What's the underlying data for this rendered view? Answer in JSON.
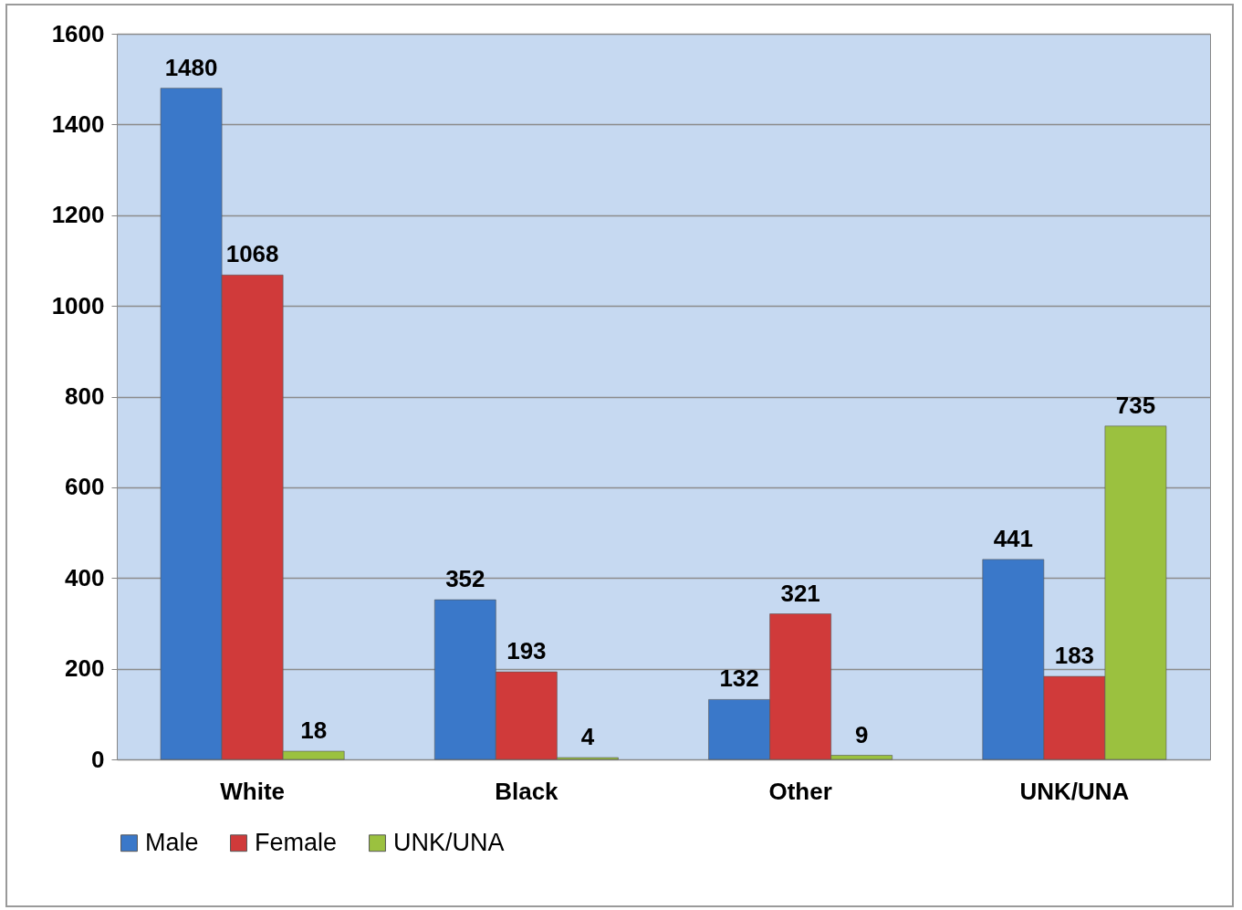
{
  "chart_data": {
    "type": "bar",
    "categories": [
      "White",
      "Black",
      "Other",
      "UNK/UNA"
    ],
    "series": [
      {
        "name": "Male",
        "color": "#3a78c9",
        "values": [
          1480,
          352,
          132,
          441
        ]
      },
      {
        "name": "Female",
        "color": "#d03a3a",
        "values": [
          1068,
          193,
          321,
          183
        ]
      },
      {
        "name": "UNK/UNA",
        "color": "#9bc13f",
        "values": [
          18,
          4,
          9,
          735
        ]
      }
    ],
    "ylim": [
      0,
      1600
    ],
    "yticks": [
      0,
      200,
      400,
      600,
      800,
      1000,
      1200,
      1400,
      1600
    ],
    "grid": "y",
    "legend": "bottom",
    "data_labels": true
  }
}
